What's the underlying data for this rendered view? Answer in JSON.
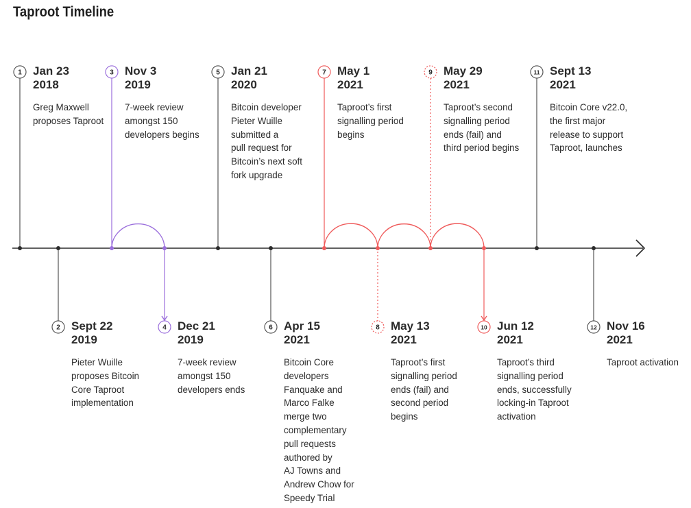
{
  "title": "Taproot Timeline",
  "colors": {
    "neutral": "#555555",
    "axis": "#2b2b2b",
    "purple": "#9b6fdc",
    "red": "#ef5b5b"
  },
  "events": [
    {
      "num": "1",
      "date": [
        "Jan 23",
        "2018"
      ],
      "desc": [
        "Greg Maxwell",
        "proposes Taproot"
      ],
      "color": "neutral"
    },
    {
      "num": "2",
      "date": [
        "Sept 22",
        "2019"
      ],
      "desc": [
        "Pieter Wuille",
        "proposes Bitcoin",
        "Core Taproot",
        "implementation"
      ],
      "color": "neutral"
    },
    {
      "num": "3",
      "date": [
        "Nov 3",
        "2019"
      ],
      "desc": [
        "7-week review",
        "amongst 150",
        "developers begins"
      ],
      "color": "purple"
    },
    {
      "num": "4",
      "date": [
        "Dec 21",
        "2019"
      ],
      "desc": [
        "7-week review",
        "amongst 150",
        "developers ends"
      ],
      "color": "purple"
    },
    {
      "num": "5",
      "date": [
        "Jan 21",
        "2020"
      ],
      "desc": [
        "Bitcoin developer",
        "Pieter Wuille",
        "submitted a",
        "pull request for",
        "Bitcoin’s next soft",
        "fork upgrade"
      ],
      "color": "neutral"
    },
    {
      "num": "6",
      "date": [
        "Apr 15",
        "2021"
      ],
      "desc": [
        "Bitcoin Core",
        "developers",
        "Fanquake and",
        "Marco Falke",
        "merge two",
        "complementary",
        "pull requests",
        "authored by",
        "AJ Towns and",
        "Andrew Chow for",
        "Speedy Trial"
      ],
      "color": "neutral"
    },
    {
      "num": "7",
      "date": [
        "May 1",
        "2021"
      ],
      "desc": [
        "Taproot’s first",
        "signalling period",
        "begins"
      ],
      "color": "red"
    },
    {
      "num": "8",
      "date": [
        "May 13",
        "2021"
      ],
      "desc": [
        "Taproot’s first",
        "signalling period",
        "ends (fail) and",
        "second period",
        "begins"
      ],
      "color": "red"
    },
    {
      "num": "9",
      "date": [
        "May 29",
        "2021"
      ],
      "desc": [
        "Taproot’s second",
        "signalling period",
        "ends (fail) and",
        "third period begins"
      ],
      "color": "red"
    },
    {
      "num": "10",
      "date": [
        "Jun 12",
        "2021"
      ],
      "desc": [
        "Taproot’s third",
        "signalling period",
        "ends, successfully",
        "locking-in Taproot",
        "activation"
      ],
      "color": "red"
    },
    {
      "num": "11",
      "date": [
        "Sept 13",
        "2021"
      ],
      "desc": [
        "Bitcoin Core v22.0,",
        "the first major",
        "release to support",
        "Taproot, launches"
      ],
      "color": "neutral"
    },
    {
      "num": "12",
      "date": [
        "Nov 16",
        "2021"
      ],
      "desc": [
        "Taproot activation"
      ],
      "color": "neutral"
    }
  ]
}
